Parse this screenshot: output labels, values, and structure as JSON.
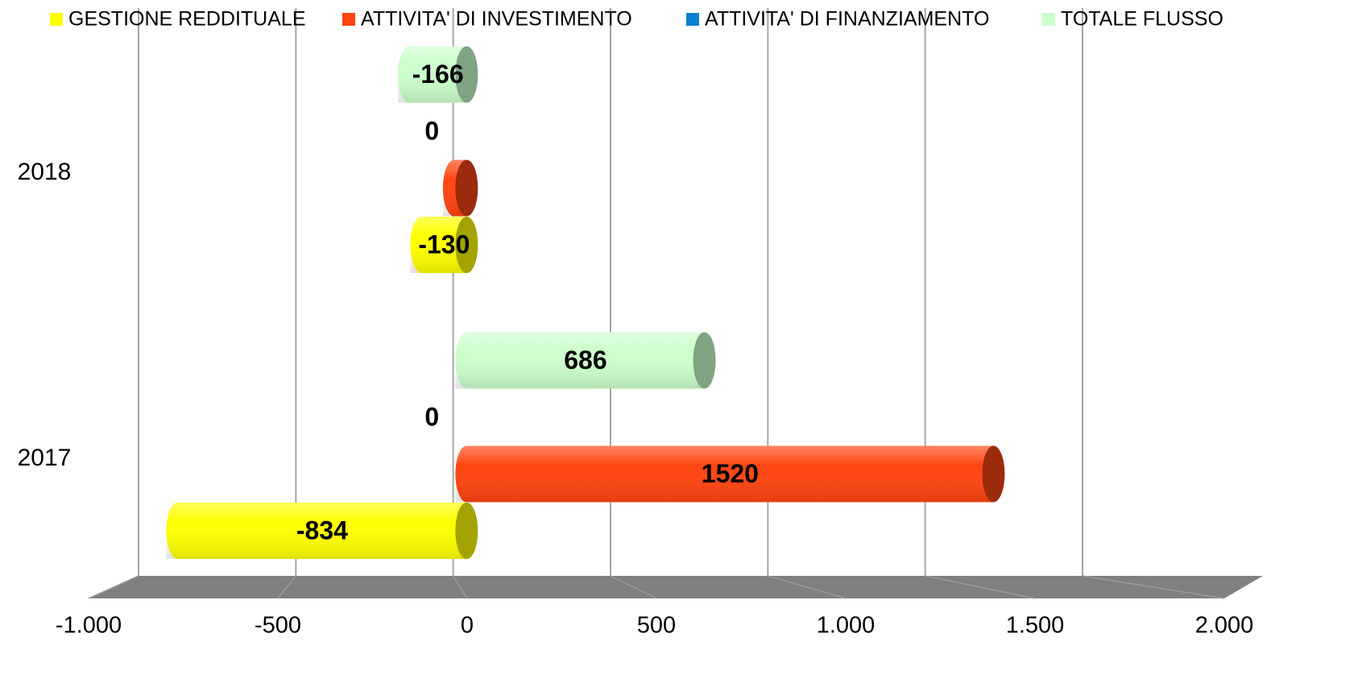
{
  "chart_data": {
    "type": "bar",
    "orientation": "horizontal",
    "categories": [
      "2017",
      "2018"
    ],
    "series": [
      {
        "name": "GESTIONE REDDITUALE",
        "color": "#ffff00",
        "values": [
          -834,
          -130
        ]
      },
      {
        "name": "ATTIVITA' DI INVESTIMENTO",
        "color": "#ff4511",
        "values": [
          1520,
          -36
        ],
        "value_labels": [
          "1520",
          null
        ]
      },
      {
        "name": "ATTIVITA' DI FINANZIAMENTO",
        "color": "#0a80d0",
        "values": [
          0,
          0
        ]
      },
      {
        "name": "TOTALE FLUSSO",
        "color": "#ccffcc",
        "values": [
          686,
          -166
        ]
      }
    ],
    "xlim": [
      -1000,
      2000
    ],
    "xticks": [
      {
        "value": -1000,
        "label": "-1.000"
      },
      -500,
      0,
      500,
      {
        "value": 1000,
        "label": "1.000"
      },
      {
        "value": 1500,
        "label": "1.500"
      },
      {
        "value": 2000,
        "label": "2.000"
      }
    ],
    "grid": true,
    "legend": "top"
  }
}
